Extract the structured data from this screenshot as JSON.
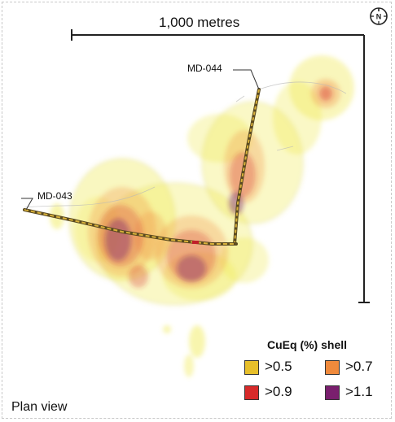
{
  "scale_bar": {
    "label": "1,000 metres"
  },
  "drill_holes": [
    {
      "id": "MD-044"
    },
    {
      "id": "MD-043"
    }
  ],
  "view_label": "Plan view",
  "legend": {
    "title": "CuEq (%) shell",
    "items": [
      {
        "label": ">0.5",
        "color": "#e7bf2a"
      },
      {
        "label": ">0.7",
        "color": "#f08a3c"
      },
      {
        "label": ">0.9",
        "color": "#d72a2a"
      },
      {
        "label": ">1.1",
        "color": "#7a1f6e"
      }
    ]
  },
  "north_arrow": {
    "icon": "north-arrow-icon",
    "letter": "N"
  }
}
